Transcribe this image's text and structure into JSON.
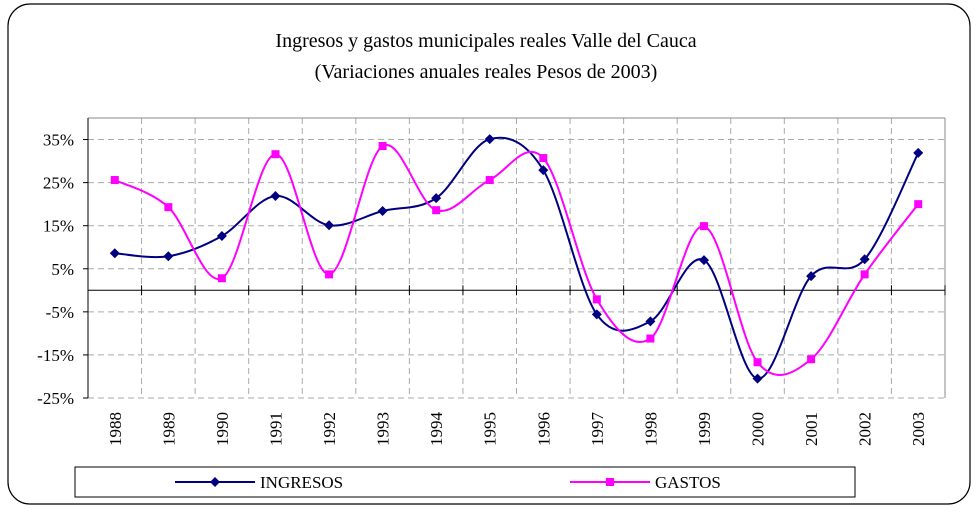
{
  "chart_data": {
    "type": "line",
    "title": "Ingresos y gastos municipales reales Valle del Cauca",
    "subtitle": "(Variaciones anuales reales Pesos de 2003)",
    "categories": [
      "1988",
      "1989",
      "1990",
      "1991",
      "1992",
      "1993",
      "1994",
      "1995",
      "1996",
      "1997",
      "1998",
      "1999",
      "2000",
      "2001",
      "2002",
      "2003"
    ],
    "series": [
      {
        "name": "INGRESOS",
        "color": "#000080",
        "marker": "diamond",
        "values": [
          8.6,
          7.9,
          12.6,
          21.9,
          15.1,
          18.4,
          21.4,
          35.1,
          27.9,
          -5.6,
          -7.2,
          7.0,
          -20.5,
          3.3,
          7.2,
          31.9
        ]
      },
      {
        "name": "GASTOS",
        "color": "#ff00ff",
        "marker": "square",
        "values": [
          25.6,
          19.3,
          2.8,
          31.6,
          3.7,
          33.5,
          18.6,
          25.6,
          30.7,
          -2.1,
          -11.2,
          14.9,
          -16.7,
          -16.0,
          3.7,
          20.0
        ]
      }
    ],
    "ylim": [
      -25,
      40
    ],
    "yticks": [
      {
        "value": -25,
        "label": "-25%"
      },
      {
        "value": -15,
        "label": "-15%"
      },
      {
        "value": -5,
        "label": "-5%"
      },
      {
        "value": 5,
        "label": "5%"
      },
      {
        "value": 15,
        "label": "15%"
      },
      {
        "value": 25,
        "label": "25%"
      },
      {
        "value": 35,
        "label": "35%"
      }
    ],
    "grid": true,
    "smooth": true,
    "legend": "bottom"
  }
}
